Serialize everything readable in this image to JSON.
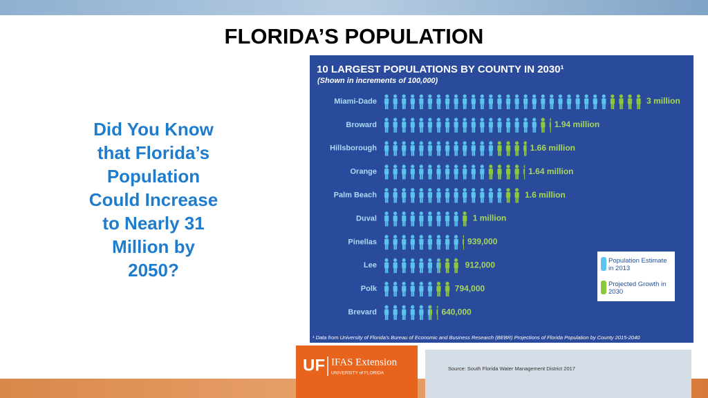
{
  "slide": {
    "title": "FLORIDA’S POPULATION",
    "question": [
      "Did You Know",
      "that Florida’s",
      "Population",
      "Could Increase",
      "to Nearly 31",
      "Million by",
      "2050?"
    ],
    "logo": {
      "mark": "UF",
      "name": "IFAS Extension",
      "university": "UNIVERSITY of FLORIDA"
    },
    "source": "Source: South Florida Water Management District 2017"
  },
  "chart_data": {
    "type": "pictograph",
    "title": "10 LARGEST POPULATIONS BY COUNTY IN 2030¹",
    "subtitle": "(Shown in increments of 100,000)",
    "footnote": "¹ Data from University of Florida’s Bureau of Economic and Business Research (BEBR) Projections of Florida Population by County 2015-2040",
    "categories": [
      "Miami-Dade",
      "Broward",
      "Hillsborough",
      "Orange",
      "Palm Beach",
      "Duval",
      "Pinellas",
      "Lee",
      "Polk",
      "Brevard"
    ],
    "series": [
      {
        "name": "Population Estimate in 2013",
        "color": "#5cc3ee",
        "values": [
          2600000,
          1800000,
          1300000,
          1200000,
          1370000,
          880000,
          920000,
          650000,
          620000,
          550000
        ]
      },
      {
        "name": "Projected Growth in 2030",
        "color": "#8dc63f",
        "values": [
          400000,
          140000,
          360000,
          440000,
          230000,
          120000,
          19000,
          262000,
          174000,
          90000
        ]
      }
    ],
    "totals": {
      "values": [
        3000000,
        1940000,
        1660000,
        1640000,
        1600000,
        1000000,
        939000,
        912000,
        794000,
        640000
      ],
      "value_labels": [
        "3 million",
        "1.94 million",
        "1.66 million",
        "1.64 million",
        "1.6 million",
        "1 million",
        "939,000",
        "912,000",
        "794,000",
        "640,000"
      ]
    }
  }
}
